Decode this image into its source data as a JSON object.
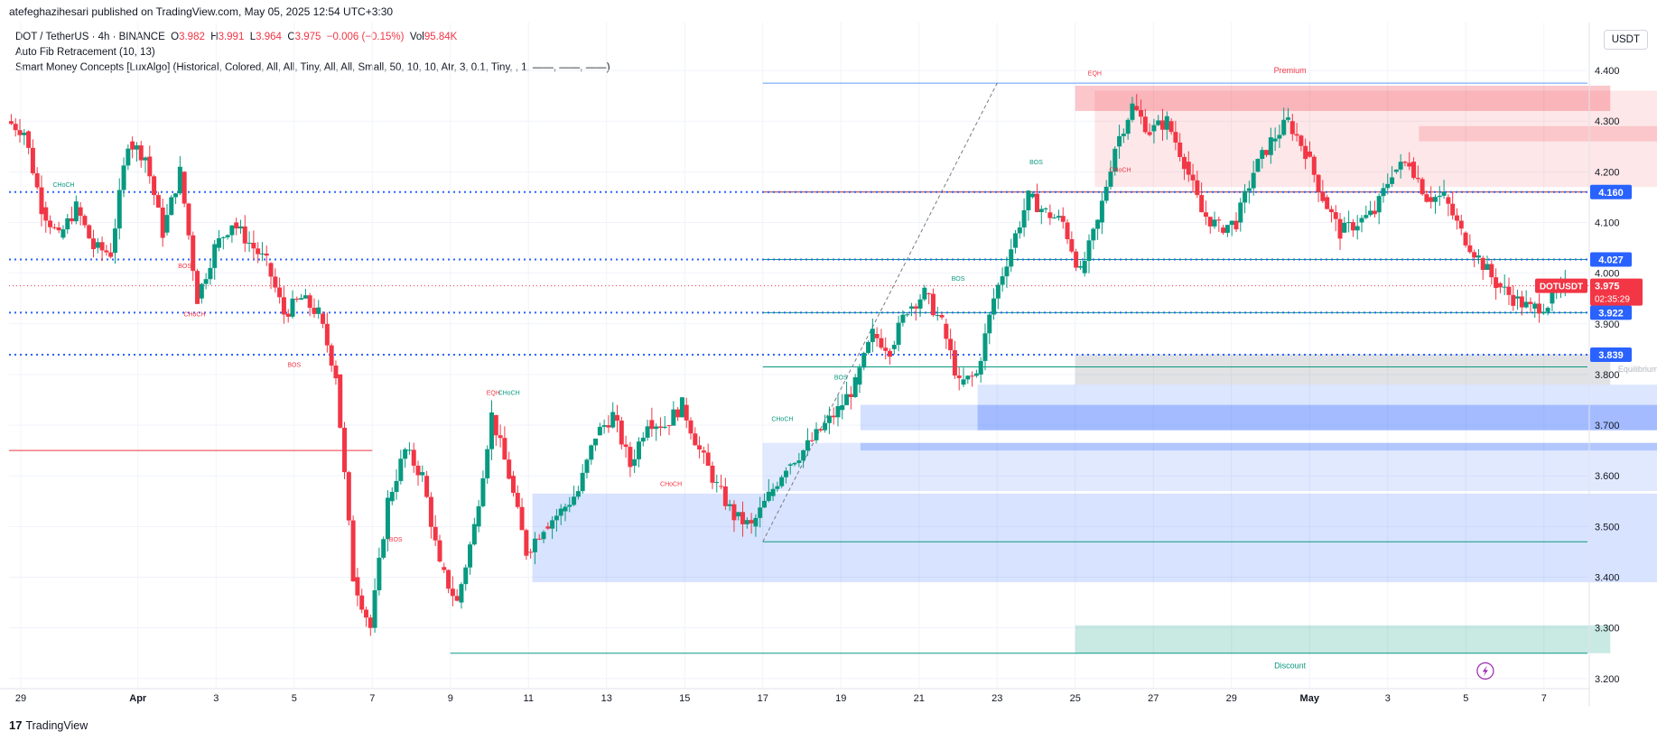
{
  "header": {
    "publisher_line": "atefeghazihesari published on TradingView.com, May 05, 2025 12:54 UTC+3:30"
  },
  "legend": {
    "symbol": "DOT / TetherUS · 4h · BINANCE",
    "o_label": "O",
    "o": "3.982",
    "h_label": "H",
    "h": "3.991",
    "l_label": "L",
    "l": "3.964",
    "c_label": "C",
    "c": "3.975",
    "change": "−0.006 (−0.15%)",
    "vol_label": "Vol",
    "vol": "95.84K",
    "indicator1": "Auto Fib Retracement (10, 13)",
    "indicator2": "Smart Money Concepts [LuxAlgo] (Historical, Colored, All, All, Tiny, All, All, Small, 50, 10, 10, Atr, 3, 0.1, Tiny, , 1, ——, ——, ——)"
  },
  "currency_button": "USDT",
  "footer": {
    "brand": "TradingView",
    "logo_glyph": "17"
  },
  "colors": {
    "up": "#089981",
    "down": "#f23645",
    "blue": "#2962ff",
    "premium": "#f23645",
    "discount": "#089981"
  },
  "chart_data": {
    "type": "candlestick",
    "symbol": "DOTUSDT",
    "timeframe": "4h",
    "ylim": [
      3.18,
      4.45
    ],
    "y_ticks": [
      "4.400",
      "4.300",
      "4.200",
      "4.100",
      "4.000",
      "3.900",
      "3.800",
      "3.700",
      "3.600",
      "3.500",
      "3.400",
      "3.300",
      "3.200"
    ],
    "x_ticks": [
      "29",
      "Apr",
      "3",
      "5",
      "7",
      "9",
      "11",
      "13",
      "15",
      "17",
      "19",
      "21",
      "23",
      "25",
      "27",
      "29",
      "May",
      "3",
      "5",
      "7"
    ],
    "price_labels": [
      {
        "text": "4.160",
        "value": 4.16,
        "kind": "blue"
      },
      {
        "text": "4.027",
        "value": 4.027,
        "kind": "blue"
      },
      {
        "text": "DOTUSDT",
        "value": 3.975,
        "kind": "red"
      },
      {
        "text": "3.975",
        "value": 3.975,
        "kind": "red"
      },
      {
        "text": "02:35:29",
        "value": 3.975,
        "kind": "red"
      },
      {
        "text": "3.922",
        "value": 3.922,
        "kind": "blue"
      },
      {
        "text": "3.839",
        "value": 3.839,
        "kind": "blue"
      }
    ],
    "level_lines": [
      4.16,
      4.027,
      3.922,
      3.839
    ],
    "zone_labels": {
      "premium": "Premium",
      "equilibrium": "Equilibrium",
      "discount": "Discount"
    },
    "annotations": [
      {
        "text": "CHoCH",
        "color": "green",
        "x_tick": "29",
        "offset": 1.1,
        "value": 4.17
      },
      {
        "text": "CHoCH",
        "color": "red",
        "x_tick": "3",
        "offset": -0.55,
        "value": 3.915
      },
      {
        "text": "BOS",
        "color": "red",
        "x_tick": "5",
        "offset": 0.0,
        "value": 3.815
      },
      {
        "text": "BOS",
        "color": "red",
        "x_tick": "7",
        "offset": 0.6,
        "value": 3.47
      },
      {
        "text": "EQH",
        "color": "red",
        "x_tick": "9",
        "offset": 1.1,
        "value": 3.76
      },
      {
        "text": "CHoCH",
        "color": "green",
        "x_tick": "9",
        "offset": 1.5,
        "value": 3.76
      },
      {
        "text": "CHoCH",
        "color": "red",
        "x_tick": "15",
        "offset": -0.35,
        "value": 3.58
      },
      {
        "text": "CHoCH",
        "color": "green",
        "x_tick": "17",
        "offset": 0.5,
        "value": 3.708
      },
      {
        "text": "BOS",
        "color": "green",
        "x_tick": "19",
        "offset": 0.0,
        "value": 3.79
      },
      {
        "text": "BOS",
        "color": "green",
        "x_tick": "21",
        "offset": 1.0,
        "value": 3.985
      },
      {
        "text": "BOS",
        "color": "green",
        "x_tick": "23",
        "offset": 1.0,
        "value": 4.215
      },
      {
        "text": "EQH",
        "color": "red",
        "x_tick": "25",
        "offset": 0.5,
        "value": 4.39
      },
      {
        "text": "CHoCH",
        "color": "red",
        "x_tick": "25",
        "offset": 1.15,
        "value": 4.2
      },
      {
        "text": "BOS",
        "color": "red",
        "x_tick": "3",
        "offset": -0.8,
        "value": 4.01
      }
    ],
    "ohlc_last": {
      "open": 3.982,
      "high": 3.991,
      "low": 3.964,
      "close": 3.975
    },
    "path": [
      [
        "28.8",
        4.3
      ],
      [
        "29",
        4.28
      ],
      [
        "29.5",
        4.13
      ],
      [
        "30",
        4.07
      ],
      [
        "30.5",
        4.13
      ],
      [
        "31",
        4.05
      ],
      [
        "Apr",
        4.04
      ],
      [
        "1.3",
        4.26
      ],
      [
        "1.6",
        4.23
      ],
      [
        "2",
        4.08
      ],
      [
        "2.4",
        4.2
      ],
      [
        "3",
        3.95
      ],
      [
        "3.5",
        4.05
      ],
      [
        "4",
        4.1
      ],
      [
        "4.5",
        4.06
      ],
      [
        "5",
        4.02
      ],
      [
        "5.5",
        3.92
      ],
      [
        "6",
        3.95
      ],
      [
        "6.5",
        3.92
      ],
      [
        "6.8",
        3.8
      ],
      [
        "7",
        3.4
      ],
      [
        "7.3",
        3.3
      ],
      [
        "7.6",
        3.55
      ],
      [
        "8",
        3.65
      ],
      [
        "8.3",
        3.6
      ],
      [
        "8.6",
        3.42
      ],
      [
        "9",
        3.35
      ],
      [
        "9.4",
        3.5
      ],
      [
        "9.7",
        3.72
      ],
      [
        "10",
        3.6
      ],
      [
        "10.5",
        3.45
      ],
      [
        "11",
        3.5
      ],
      [
        "11.5",
        3.53
      ],
      [
        "12",
        3.57
      ],
      [
        "12.5",
        3.68
      ],
      [
        "13",
        3.72
      ],
      [
        "13.4",
        3.62
      ],
      [
        "13.8",
        3.71
      ],
      [
        "14.2",
        3.7
      ],
      [
        "14.6",
        3.74
      ],
      [
        "15",
        3.65
      ],
      [
        "15.5",
        3.58
      ],
      [
        "16",
        3.52
      ],
      [
        "16.5",
        3.5
      ],
      [
        "17",
        3.56
      ],
      [
        "17.5",
        3.62
      ],
      [
        "18",
        3.65
      ],
      [
        "18.5",
        3.69
      ],
      [
        "19",
        3.73
      ],
      [
        "19.5",
        3.78
      ],
      [
        "20",
        3.88
      ],
      [
        "20.5",
        3.85
      ],
      [
        "21",
        3.93
      ],
      [
        "21.3",
        3.96
      ],
      [
        "21.6",
        3.9
      ],
      [
        "22",
        3.78
      ],
      [
        "22.4",
        3.8
      ],
      [
        "22.8",
        3.95
      ],
      [
        "23",
        4.05
      ],
      [
        "23.4",
        4.15
      ],
      [
        "23.7",
        4.12
      ],
      [
        "24",
        4.1
      ],
      [
        "24.3",
        4.0
      ],
      [
        "24.6",
        4.1
      ],
      [
        "25",
        4.25
      ],
      [
        "25.3",
        4.33
      ],
      [
        "25.7",
        4.28
      ],
      [
        "26",
        4.3
      ],
      [
        "26.5",
        4.22
      ],
      [
        "27",
        4.12
      ],
      [
        "27.5",
        4.09
      ],
      [
        "28",
        4.1
      ],
      [
        "28.5",
        4.2
      ],
      [
        "29",
        4.26
      ],
      [
        "29.4",
        4.3
      ],
      [
        "29.8",
        4.24
      ],
      [
        "30",
        4.15
      ],
      [
        "30.5",
        4.08
      ],
      [
        "May",
        4.1
      ],
      [
        "1.5",
        4.12
      ],
      [
        "2",
        4.2
      ],
      [
        "2.5",
        4.22
      ],
      [
        "3",
        4.15
      ],
      [
        "3.4",
        4.15
      ],
      [
        "3.7",
        4.08
      ],
      [
        "4",
        4.03
      ],
      [
        "4.3",
        3.98
      ],
      [
        "4.6",
        3.95
      ],
      [
        "4.9",
        3.93
      ],
      [
        "5",
        3.94
      ],
      [
        "5.2",
        3.975
      ]
    ]
  }
}
